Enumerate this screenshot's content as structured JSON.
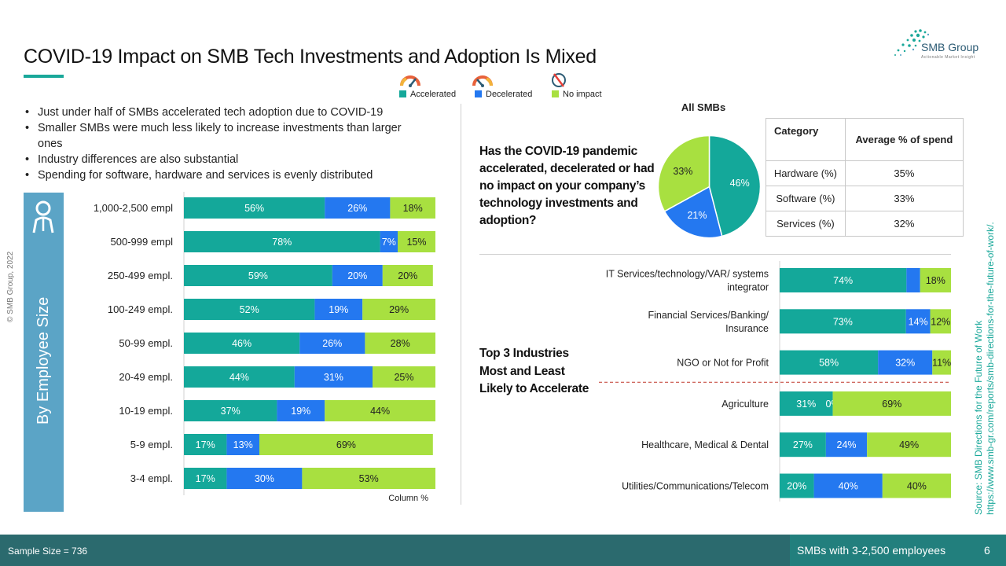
{
  "title": "COVID-19 Impact on SMB Tech Investments and Adoption Is Mixed",
  "brand": {
    "name": "SMB Group",
    "tagline": "Actionable Market Insight",
    "accent": "#1aa89a"
  },
  "colors": {
    "accelerated": "#14a89a",
    "decelerated": "#2478f0",
    "no_impact": "#a8e040",
    "panel": "#5ba4c6",
    "footer": "#2b6a6e"
  },
  "legend": [
    {
      "label": "Accelerated",
      "color": "#14a89a",
      "icon": "speedometer-fast-icon"
    },
    {
      "label": "Decelerated",
      "color": "#2478f0",
      "icon": "speedometer-slow-icon"
    },
    {
      "label": "No impact",
      "color": "#a8e040",
      "icon": "no-change-icon"
    }
  ],
  "bullets": [
    "Just under half of SMBs accelerated tech adoption due to COVID-19",
    "Smaller SMBs were much less likely to increase investments than larger ones",
    "Industry differences are also substantial",
    "Spending for software, hardware and services is evenly distributed"
  ],
  "copyright": "© SMB Group, 2022",
  "employee_panel_label": "By Employee Size",
  "question": "Has the COVID-19 pandemic accelerated, decelerated or had no impact on your company’s technology investments and adoption?",
  "pie_title": "All SMBs",
  "spend_table": {
    "headers": [
      "Category",
      "Average % of spend"
    ],
    "rows": [
      [
        "Hardware (%)",
        "35%"
      ],
      [
        "Software (%)",
        "33%"
      ],
      [
        "Services (%)",
        "32%"
      ]
    ]
  },
  "industry_label": "Top 3 Industries Most and Least Likely to Accelerate",
  "source_line1": "Source:  SMB Directions for the Future of Work",
  "source_line2": "https://www.smb-gr.com/reports/smb-directions-for-the-future-of-work/.",
  "footer": {
    "sample": "Sample Size = 736",
    "note": "SMBs with 3-2,500 employees",
    "page": "6"
  },
  "chart_data": [
    {
      "type": "bar",
      "orientation": "horizontal",
      "stacked": true,
      "xlabel": "Column %",
      "categories": [
        "1,000-2,500 empl",
        "500-999 empl",
        "250-499 empl.",
        "100-249 empl.",
        "50-99 empl.",
        "20-49 empl.",
        "10-19 empl.",
        "5-9 empl.",
        "3-4 empl."
      ],
      "series": [
        {
          "name": "Accelerated",
          "values": [
            56,
            78,
            59,
            52,
            46,
            44,
            37,
            17,
            17
          ]
        },
        {
          "name": "Decelerated",
          "values": [
            26,
            7,
            20,
            19,
            26,
            31,
            19,
            13,
            30
          ]
        },
        {
          "name": "No impact",
          "values": [
            18,
            15,
            20,
            29,
            28,
            25,
            44,
            69,
            53
          ]
        }
      ]
    },
    {
      "type": "pie",
      "title": "All SMBs",
      "labels": [
        "Accelerated",
        "Decelerated",
        "No impact"
      ],
      "values": [
        46,
        21,
        33
      ]
    },
    {
      "type": "bar",
      "orientation": "horizontal",
      "stacked": true,
      "categories": [
        "IT Services/technology/VAR/ systems integrator",
        "Financial Services/Banking/ Insurance",
        "NGO or Not for Profit",
        "Agriculture",
        "Healthcare, Medical & Dental",
        "Utilities/Communications/Telecom"
      ],
      "series": [
        {
          "name": "Accelerated",
          "values": [
            74,
            73,
            58,
            31,
            27,
            20
          ],
          "labels": [
            "74%",
            "73%",
            "58%",
            "31%",
            "27%",
            "20%"
          ]
        },
        {
          "name": "Decelerated",
          "values": [
            8,
            14,
            32,
            0,
            24,
            40
          ],
          "labels": [
            "",
            "14%",
            "32%",
            "0%",
            "24%",
            "40%"
          ]
        },
        {
          "name": "No impact",
          "values": [
            18,
            12,
            11,
            69,
            49,
            40
          ],
          "labels": [
            "18%",
            "12%",
            "11%",
            "69%",
            "49%",
            "40%"
          ]
        }
      ],
      "separator_after_index": 2
    }
  ]
}
